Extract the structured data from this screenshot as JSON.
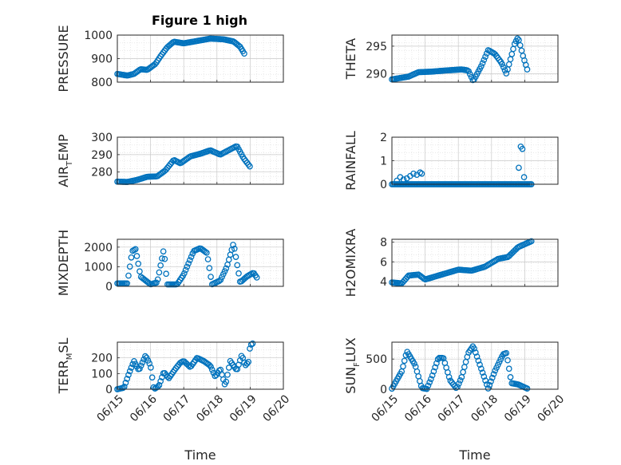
{
  "figure": {
    "title": "Figure 1 high",
    "xlabel": "Time",
    "marker_color": "#0072bd",
    "grid": "on (major + minor, dotted)",
    "x_ticks": [
      "06/15",
      "06/16",
      "06/17",
      "06/18",
      "06/19",
      "06/20"
    ]
  },
  "chart_data": [
    {
      "type": "scatter",
      "title": "Figure 1 high",
      "ylabel": {
        "main": "PRESSURE",
        "sub": "",
        "tail": ""
      },
      "xlim": [
        0,
        5
      ],
      "ylim": [
        800,
        1000
      ],
      "yticks": [
        "800",
        "900",
        "1000"
      ],
      "ytick_values": [
        800,
        900,
        1000
      ],
      "knots": [
        [
          0.0,
          835
        ],
        [
          0.3,
          828
        ],
        [
          0.5,
          835
        ],
        [
          0.7,
          855
        ],
        [
          0.9,
          852
        ],
        [
          1.15,
          878
        ],
        [
          1.3,
          910
        ],
        [
          1.5,
          948
        ],
        [
          1.7,
          972
        ],
        [
          2.0,
          965
        ],
        [
          2.4,
          975
        ],
        [
          2.8,
          985
        ],
        [
          3.2,
          982
        ],
        [
          3.5,
          973
        ],
        [
          3.7,
          950
        ],
        [
          3.85,
          915
        ]
      ]
    },
    {
      "type": "scatter",
      "title": "",
      "ylabel": {
        "main": "THETA",
        "sub": "",
        "tail": ""
      },
      "xlim": [
        0,
        5
      ],
      "ylim": [
        288.5,
        297
      ],
      "yticks": [
        "290",
        "295"
      ],
      "ytick_values": [
        290,
        295
      ],
      "knots": [
        [
          0.0,
          289.0
        ],
        [
          0.5,
          289.5
        ],
        [
          0.8,
          290.3
        ],
        [
          1.2,
          290.4
        ],
        [
          1.6,
          290.6
        ],
        [
          2.1,
          290.8
        ],
        [
          2.3,
          290.6
        ],
        [
          2.45,
          288.7
        ],
        [
          2.7,
          291.5
        ],
        [
          2.9,
          294.3
        ],
        [
          3.1,
          293.6
        ],
        [
          3.3,
          292.0
        ],
        [
          3.45,
          290.0
        ],
        [
          3.7,
          295.5
        ],
        [
          3.8,
          296.6
        ],
        [
          3.95,
          293.2
        ],
        [
          4.1,
          290.3
        ]
      ]
    },
    {
      "type": "scatter",
      "title": "",
      "ylabel": {
        "main": "AIR",
        "sub": "T",
        "tail": "EMP"
      },
      "xlim": [
        0,
        5
      ],
      "ylim": [
        273,
        300
      ],
      "yticks": [
        "280",
        "290",
        "300"
      ],
      "ytick_values": [
        280,
        290,
        300
      ],
      "knots": [
        [
          0.0,
          274.5
        ],
        [
          0.3,
          274.3
        ],
        [
          0.6,
          275.5
        ],
        [
          0.9,
          277.3
        ],
        [
          1.2,
          277.5
        ],
        [
          1.45,
          281.0
        ],
        [
          1.7,
          287.0
        ],
        [
          1.9,
          285.0
        ],
        [
          2.2,
          289.0
        ],
        [
          2.5,
          290.5
        ],
        [
          2.8,
          292.5
        ],
        [
          3.1,
          290.0
        ],
        [
          3.4,
          293.0
        ],
        [
          3.6,
          295.0
        ],
        [
          3.8,
          288.0
        ],
        [
          4.0,
          283.0
        ]
      ]
    },
    {
      "type": "scatter",
      "title": "",
      "ylabel": {
        "main": "RAINFALL",
        "sub": "",
        "tail": ""
      },
      "xlim": [
        0,
        5
      ],
      "ylim": [
        0,
        2
      ],
      "yticks": [
        "0",
        "1",
        "2"
      ],
      "ytick_values": [
        0,
        1,
        2
      ],
      "extra_points": [
        [
          0.15,
          0.15
        ],
        [
          0.25,
          0.3
        ],
        [
          0.35,
          0.2
        ],
        [
          0.45,
          0.25
        ],
        [
          0.55,
          0.35
        ],
        [
          0.65,
          0.45
        ],
        [
          0.75,
          0.4
        ],
        [
          0.85,
          0.5
        ],
        [
          0.9,
          0.45
        ],
        [
          3.82,
          0.7
        ],
        [
          3.88,
          1.6
        ],
        [
          3.93,
          1.5
        ],
        [
          3.98,
          0.3
        ]
      ],
      "knots": [
        [
          0.0,
          0.0
        ],
        [
          4.2,
          0.0
        ]
      ]
    },
    {
      "type": "scatter",
      "title": "",
      "ylabel": {
        "main": "MIXDEPTH",
        "sub": "",
        "tail": ""
      },
      "xlim": [
        0,
        5
      ],
      "ylim": [
        0,
        2400
      ],
      "yticks": [
        "0",
        "1000",
        "2000"
      ],
      "ytick_values": [
        0,
        1000,
        2000
      ],
      "knots": [
        [
          0.0,
          150
        ],
        [
          0.3,
          150
        ],
        [
          0.45,
          1800
        ],
        [
          0.55,
          1900
        ],
        [
          0.7,
          500
        ],
        [
          0.85,
          300
        ],
        [
          1.0,
          100
        ],
        [
          1.2,
          200
        ],
        [
          1.4,
          1900
        ],
        [
          1.5,
          100
        ],
        [
          1.8,
          100
        ],
        [
          2.0,
          600
        ],
        [
          2.3,
          1800
        ],
        [
          2.5,
          1950
        ],
        [
          2.7,
          1700
        ],
        [
          2.85,
          100
        ],
        [
          3.1,
          300
        ],
        [
          3.3,
          1000
        ],
        [
          3.5,
          2200
        ],
        [
          3.7,
          200
        ],
        [
          3.9,
          500
        ],
        [
          4.1,
          700
        ],
        [
          4.2,
          450
        ]
      ]
    },
    {
      "type": "scatter",
      "title": "",
      "ylabel": {
        "main": "H2OMIXRA",
        "sub": "",
        "tail": ""
      },
      "xlim": [
        0,
        5
      ],
      "ylim": [
        3.5,
        8.3
      ],
      "yticks": [
        "4",
        "6",
        "8"
      ],
      "ytick_values": [
        4,
        6,
        8
      ],
      "knots": [
        [
          0.0,
          3.9
        ],
        [
          0.3,
          3.8
        ],
        [
          0.5,
          4.6
        ],
        [
          0.8,
          4.7
        ],
        [
          1.0,
          4.2
        ],
        [
          1.3,
          4.5
        ],
        [
          1.6,
          4.8
        ],
        [
          2.0,
          5.2
        ],
        [
          2.4,
          5.1
        ],
        [
          2.8,
          5.5
        ],
        [
          3.2,
          6.3
        ],
        [
          3.5,
          6.5
        ],
        [
          3.8,
          7.5
        ],
        [
          4.2,
          8.1
        ]
      ]
    },
    {
      "type": "scatter",
      "title": "",
      "ylabel": {
        "main": "TERR",
        "sub": "M",
        "tail": "SL"
      },
      "xlim": [
        0,
        5
      ],
      "ylim": [
        0,
        300
      ],
      "yticks": [
        "0",
        "100",
        "200"
      ],
      "ytick_values": [
        0,
        100,
        200
      ],
      "knots": [
        [
          0.0,
          0
        ],
        [
          0.2,
          10
        ],
        [
          0.35,
          100
        ],
        [
          0.5,
          180
        ],
        [
          0.65,
          120
        ],
        [
          0.85,
          215
        ],
        [
          1.0,
          150
        ],
        [
          1.1,
          0
        ],
        [
          1.25,
          20
        ],
        [
          1.4,
          110
        ],
        [
          1.55,
          70
        ],
        [
          1.75,
          130
        ],
        [
          1.9,
          170
        ],
        [
          2.0,
          180
        ],
        [
          2.2,
          140
        ],
        [
          2.4,
          200
        ],
        [
          2.6,
          180
        ],
        [
          2.8,
          150
        ],
        [
          2.95,
          80
        ],
        [
          3.1,
          130
        ],
        [
          3.25,
          20
        ],
        [
          3.4,
          180
        ],
        [
          3.6,
          120
        ],
        [
          3.75,
          220
        ],
        [
          3.85,
          150
        ],
        [
          3.95,
          175
        ],
        [
          4.0,
          280
        ],
        [
          4.1,
          295
        ]
      ]
    },
    {
      "type": "scatter",
      "title": "",
      "ylabel": {
        "main": "SUN",
        "sub": "F",
        "tail": "LUX"
      },
      "xlim": [
        0,
        5
      ],
      "ylim": [
        0,
        780
      ],
      "yticks": [
        "0",
        "500"
      ],
      "ytick_values": [
        0,
        500
      ],
      "knots": [
        [
          0.0,
          10
        ],
        [
          0.3,
          300
        ],
        [
          0.45,
          630
        ],
        [
          0.7,
          400
        ],
        [
          0.9,
          20
        ],
        [
          1.05,
          5
        ],
        [
          1.2,
          200
        ],
        [
          1.4,
          520
        ],
        [
          1.55,
          520
        ],
        [
          1.75,
          150
        ],
        [
          1.95,
          10
        ],
        [
          2.1,
          200
        ],
        [
          2.3,
          600
        ],
        [
          2.45,
          720
        ],
        [
          2.65,
          400
        ],
        [
          2.9,
          10
        ],
        [
          3.1,
          300
        ],
        [
          3.35,
          580
        ],
        [
          3.45,
          600
        ],
        [
          3.6,
          100
        ],
        [
          3.8,
          80
        ],
        [
          4.1,
          5
        ]
      ]
    }
  ]
}
